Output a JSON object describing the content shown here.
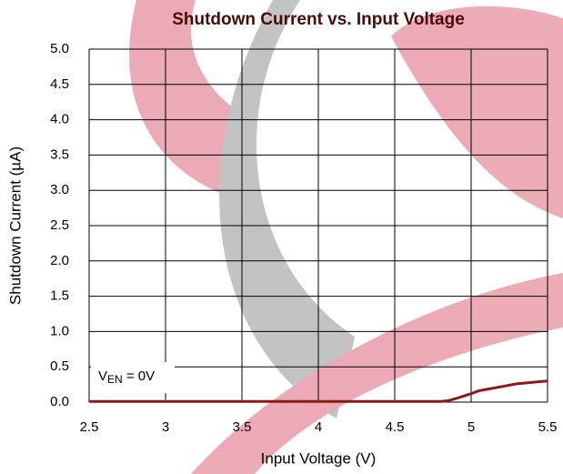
{
  "chart_data": {
    "type": "line",
    "title": "Shutdown Current vs. Input Voltage",
    "xlabel": "Input Voltage (V)",
    "ylabel": "Shutdown Current (µA)",
    "annotation": {
      "main": "V",
      "subscript": "EN",
      "rest": " = 0V"
    },
    "x": [
      2.5,
      3.0,
      3.5,
      4.0,
      4.5,
      4.8,
      4.85,
      4.9,
      5.0,
      5.05,
      5.1,
      5.2,
      5.3,
      5.4,
      5.5
    ],
    "series": [
      {
        "name": "Shutdown Current",
        "color": "#8b1a1a",
        "values": [
          0.01,
          0.01,
          0.01,
          0.01,
          0.01,
          0.01,
          0.02,
          0.05,
          0.12,
          0.16,
          0.18,
          0.22,
          0.26,
          0.28,
          0.3
        ]
      }
    ],
    "xlim": [
      2.5,
      5.5
    ],
    "xticks": [
      2.5,
      3,
      3.5,
      4,
      4.5,
      5,
      5.5
    ],
    "ylim": [
      0,
      5
    ],
    "yticks": [
      {
        "value": 0,
        "label": "0.0"
      },
      0.5,
      {
        "value": 1,
        "label": "1.0"
      },
      1.5,
      {
        "value": 2,
        "label": "2.0"
      },
      2.5,
      {
        "value": 3,
        "label": "3.0"
      },
      3.5,
      {
        "value": 4,
        "label": "4.0"
      },
      4.5,
      {
        "value": 5,
        "label": "5.0"
      }
    ],
    "grid": true
  }
}
